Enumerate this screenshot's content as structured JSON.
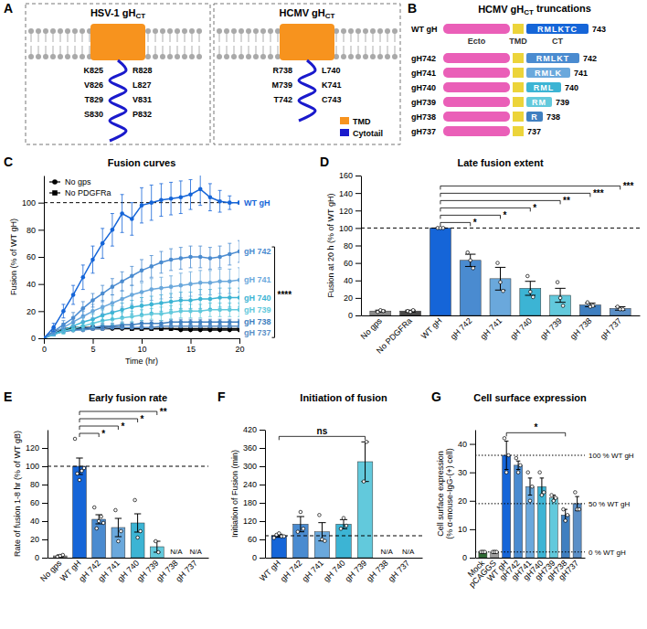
{
  "diagrams": [
    {
      "panel": "A",
      "panels": [
        {
          "title": "HSV-1 gH",
          "title_sub": "CT",
          "residues": [
            "K825",
            "R828",
            "V826",
            "L827",
            "T829",
            "V831",
            "S830",
            "P832"
          ]
        },
        {
          "title": "HCMV gH",
          "title_sub": "CT",
          "residues": [
            "R738",
            "L740",
            "M739",
            "K741",
            "T742",
            "C743"
          ]
        }
      ],
      "key": [
        {
          "label": "TMD",
          "color": "#f7931e"
        },
        {
          "label": "Cytotail",
          "color": "#1a1acc"
        }
      ]
    },
    {
      "panel": "B",
      "title": "HCMV gH",
      "title_sub": "CT",
      "title_suffix": "truncations",
      "domains": [
        {
          "label": "Ecto",
          "color": "#ea5fb8"
        },
        {
          "label": "TMD",
          "color": "#ecd43a"
        },
        {
          "label": "CT",
          "color": "#1565d8"
        }
      ],
      "rows": [
        {
          "name": "WT gH",
          "sequence": "RMLKTC",
          "end": 743,
          "color": "#1565d8"
        },
        {
          "name": "gH742",
          "sequence": "RMLKT",
          "end": 742,
          "color": "#4a8bd0"
        },
        {
          "name": "gH741",
          "sequence": "RMLK",
          "end": 741,
          "color": "#6aa8dc"
        },
        {
          "name": "gH740",
          "sequence": "RML",
          "end": 740,
          "color": "#3cb4d4"
        },
        {
          "name": "gH739",
          "sequence": "RM",
          "end": 739,
          "color": "#62c9dc"
        },
        {
          "name": "gH738",
          "sequence": "R",
          "end": 738,
          "color": "#3f7fc0"
        },
        {
          "name": "gH737",
          "sequence": null,
          "end": 737,
          "color": "#5b8fc7"
        }
      ]
    }
  ],
  "chart_data": [
    {
      "panel": "C",
      "type": "line",
      "title": "Fusion curves",
      "x_label": "Time (hr)",
      "y_label": "Fusion (% of WT gH)",
      "x": [
        0,
        1,
        2,
        3,
        4,
        5,
        6,
        7,
        8,
        9,
        10,
        11,
        12,
        13,
        14,
        15,
        16,
        17,
        18,
        19,
        20
      ],
      "xlim": [
        0,
        20
      ],
      "xticks": [
        0,
        5,
        10,
        15,
        20
      ],
      "ylim": [
        0,
        120
      ],
      "yticks": [
        0,
        20,
        40,
        60,
        80,
        100
      ],
      "reference_line": 100,
      "legend": "upper left",
      "controls": [
        {
          "name": "No gps",
          "color": "#000000",
          "marker": "circle",
          "values": [
            0,
            4,
            6,
            7,
            7,
            7,
            7,
            7,
            7,
            7,
            7,
            7,
            7,
            7,
            6,
            6,
            6,
            6,
            6,
            6,
            6
          ]
        },
        {
          "name": "No PDGFRa",
          "color": "#000000",
          "marker": "square",
          "values": [
            0,
            5,
            7,
            8,
            8,
            8,
            8,
            8,
            8,
            7,
            7,
            7,
            7,
            7,
            7,
            7,
            7,
            7,
            7,
            7,
            7
          ]
        }
      ],
      "series": [
        {
          "name": "WT gH",
          "color": "#1565d8",
          "marker": "circle",
          "values": [
            0,
            8,
            20,
            32,
            45,
            58,
            70,
            80,
            92,
            88,
            98,
            100,
            102,
            103,
            104,
            106,
            110,
            104,
            101,
            100,
            100
          ],
          "errors": [
            0,
            3,
            5,
            7,
            9,
            10,
            11,
            12,
            14,
            12,
            13,
            13,
            12,
            12,
            12,
            11,
            12,
            10,
            8,
            5,
            1
          ]
        },
        {
          "name": "gH 742",
          "color": "#4a8bd0",
          "marker": "circle",
          "values": [
            0,
            5,
            10,
            15,
            22,
            28,
            33,
            38,
            42,
            46,
            50,
            53,
            56,
            58,
            59,
            60,
            60,
            59,
            60,
            62,
            64
          ],
          "errors": [
            0,
            2,
            3,
            4,
            5,
            5,
            6,
            6,
            7,
            7,
            8,
            8,
            8,
            8,
            8,
            8,
            8,
            8,
            8,
            8,
            8
          ]
        },
        {
          "name": "gH 741",
          "color": "#6aa8dc",
          "marker": "circle",
          "values": [
            0,
            4,
            8,
            12,
            16,
            20,
            23,
            26,
            29,
            32,
            34,
            36,
            37,
            38,
            39,
            40,
            41,
            41,
            42,
            42,
            43
          ],
          "errors": [
            0,
            2,
            3,
            3,
            4,
            5,
            5,
            6,
            6,
            7,
            7,
            8,
            8,
            8,
            9,
            9,
            9,
            9,
            9,
            9,
            9
          ]
        },
        {
          "name": "gH 740",
          "color": "#3cb4d4",
          "marker": "circle",
          "values": [
            0,
            3,
            6,
            9,
            12,
            14,
            17,
            19,
            21,
            23,
            24,
            25,
            26,
            27,
            28,
            28,
            29,
            29,
            30,
            30,
            30
          ],
          "errors": [
            0,
            1,
            2,
            3,
            3,
            4,
            4,
            5,
            5,
            5,
            6,
            6,
            6,
            6,
            6,
            6,
            7,
            7,
            7,
            7,
            7
          ]
        },
        {
          "name": "gH 739",
          "color": "#62c9dc",
          "marker": "circle",
          "values": [
            0,
            3,
            5,
            7,
            9,
            11,
            13,
            14,
            15,
            16,
            17,
            18,
            18,
            19,
            20,
            20,
            20,
            21,
            21,
            21,
            21
          ],
          "errors": [
            0,
            1,
            2,
            2,
            3,
            3,
            3,
            4,
            4,
            4,
            4,
            4,
            5,
            5,
            5,
            5,
            5,
            5,
            5,
            5,
            5
          ]
        },
        {
          "name": "gH 738",
          "color": "#3f7fc0",
          "marker": "circle",
          "values": [
            0,
            3,
            5,
            6,
            7,
            8,
            9,
            9,
            10,
            10,
            11,
            11,
            11,
            12,
            12,
            12,
            12,
            12,
            12,
            12,
            12
          ],
          "errors": [
            0,
            1,
            1,
            1,
            1,
            1,
            2,
            2,
            2,
            2,
            2,
            2,
            2,
            2,
            2,
            2,
            2,
            2,
            2,
            2,
            2
          ]
        },
        {
          "name": "gH 737",
          "color": "#5b8fc7",
          "marker": "circle",
          "values": [
            0,
            3,
            5,
            6,
            6,
            7,
            7,
            8,
            8,
            8,
            8,
            8,
            9,
            9,
            9,
            9,
            9,
            9,
            9,
            9,
            9
          ],
          "errors": [
            0,
            1,
            1,
            1,
            1,
            1,
            1,
            1,
            1,
            1,
            1,
            1,
            1,
            1,
            1,
            1,
            1,
            1,
            1,
            1,
            1
          ]
        }
      ],
      "annotations": [
        {
          "text": "****",
          "from": "gH 742",
          "to": "gH 737"
        }
      ]
    },
    {
      "panel": "D",
      "type": "bar",
      "title": "Late fusion extent",
      "y_label": "Fusion at 20 h (% of WT gH)",
      "categories": [
        "No gps",
        "No PDGFRa",
        "WT gH",
        "gH 742",
        "gH 741",
        "gH 740",
        "gH 739",
        "gH 738",
        "gH 737"
      ],
      "values": [
        5,
        5,
        100,
        63,
        42,
        31,
        23,
        12,
        8
      ],
      "errors": [
        1,
        1,
        0,
        7,
        13,
        8,
        8,
        2,
        2
      ],
      "points": [
        [
          4,
          6,
          5
        ],
        [
          5,
          4,
          6
        ],
        [
          100,
          100,
          100
        ],
        [
          72,
          63,
          54
        ],
        [
          60,
          38,
          28
        ],
        [
          45,
          27,
          21
        ],
        [
          38,
          20,
          11
        ],
        [
          15,
          10,
          11
        ],
        [
          10,
          7,
          7
        ]
      ],
      "colors": [
        "#8a8a8a",
        "#4a4a4a",
        "#1565d8",
        "#4a8bd0",
        "#6aa8dc",
        "#3cb4d4",
        "#62c9dc",
        "#3f7fc0",
        "#5b8fc7"
      ],
      "ylim": [
        0,
        160
      ],
      "yticks": [
        0,
        20,
        40,
        60,
        80,
        100,
        120,
        140,
        160
      ],
      "reference_line": 100,
      "comparisons": [
        {
          "groups": [
            "WT gH",
            "gH 742"
          ],
          "label": "*"
        },
        {
          "groups": [
            "WT gH",
            "gH 741"
          ],
          "label": "*"
        },
        {
          "groups": [
            "WT gH",
            "gH 740"
          ],
          "label": "*"
        },
        {
          "groups": [
            "WT gH",
            "gH 739"
          ],
          "label": "**"
        },
        {
          "groups": [
            "WT gH",
            "gH 738"
          ],
          "label": "***"
        },
        {
          "groups": [
            "WT gH",
            "gH 737"
          ],
          "label": "***"
        }
      ]
    },
    {
      "panel": "E",
      "type": "bar",
      "title": "Early fusion rate",
      "y_label": "Rate of fusion 1-8 hr (% of WT gB)",
      "categories": [
        "No gps",
        "WT gH",
        "gH 742",
        "gH 741",
        "gH 740",
        "gH 739",
        "gH 738",
        "gH 737"
      ],
      "values": [
        2,
        100,
        42,
        33,
        38,
        12,
        null,
        null
      ],
      "value_labels": [
        null,
        null,
        null,
        null,
        null,
        null,
        "N/A",
        "N/A"
      ],
      "errors": [
        1,
        9,
        5,
        10,
        10,
        6,
        null,
        null
      ],
      "points": [
        [
          1,
          2,
          3
        ],
        [
          130,
          92,
          85,
          95,
          98
        ],
        [
          55,
          32,
          40,
          45,
          38
        ],
        [
          52,
          18,
          29
        ],
        [
          63,
          22,
          29
        ],
        [
          18,
          6
        ],
        [],
        []
      ],
      "colors": [
        "#8a8a8a",
        "#1565d8",
        "#4a8bd0",
        "#6aa8dc",
        "#3cb4d4",
        "#62c9dc",
        "#3f7fc0",
        "#5b8fc7"
      ],
      "ylim": [
        0,
        140
      ],
      "yticks": [
        0,
        20,
        40,
        60,
        80,
        100,
        120
      ],
      "reference_line": 100,
      "comparisons": [
        {
          "groups": [
            "WT gH",
            "gH 742"
          ],
          "label": "*"
        },
        {
          "groups": [
            "WT gH",
            "gH 741"
          ],
          "label": "*"
        },
        {
          "groups": [
            "WT gH",
            "gH 740"
          ],
          "label": "*"
        },
        {
          "groups": [
            "WT gH",
            "gH 739"
          ],
          "label": "**"
        }
      ]
    },
    {
      "panel": "F",
      "type": "bar",
      "title": "Initiation of fusion",
      "y_label": "Initiation of Fusion (min)",
      "categories": [
        "WT gH",
        "gH 742",
        "gH 741",
        "gH 740",
        "gH 739",
        "gH 738",
        "gH 737"
      ],
      "values": [
        72,
        110,
        85,
        110,
        315,
        null,
        null
      ],
      "value_labels": [
        null,
        null,
        null,
        null,
        null,
        "N/A",
        "N/A"
      ],
      "errors": [
        5,
        25,
        30,
        15,
        65,
        null,
        null
      ],
      "points": [
        [
          65,
          75,
          80,
          70,
          70
        ],
        [
          85,
          150,
          95
        ],
        [
          140,
          60,
          55
        ],
        [
          95,
          130,
          105
        ],
        [
          250,
          380
        ],
        [],
        []
      ],
      "colors": [
        "#1565d8",
        "#4a8bd0",
        "#6aa8dc",
        "#3cb4d4",
        "#62c9dc",
        "#3f7fc0",
        "#5b8fc7"
      ],
      "ylim": [
        0,
        420
      ],
      "yticks": [
        0,
        60,
        120,
        180,
        240,
        300,
        360,
        420
      ],
      "reference_line": 72,
      "comparisons": [
        {
          "groups": [
            "WT gH",
            "gH 739"
          ],
          "label": "ns"
        }
      ]
    },
    {
      "panel": "G",
      "type": "bar",
      "title": "Cell surface expression",
      "y_label": "Cell surface expression (% α-mouse-IgG-(+) cell)",
      "categories": [
        "Mock",
        "pCAGGS",
        "WT gH",
        "gH742",
        "gH741",
        "gH740",
        "gH739",
        "gH738",
        "gH737"
      ],
      "values": [
        2,
        2,
        36,
        32.5,
        25,
        25,
        21,
        15,
        19
      ],
      "errors": [
        0.5,
        0.5,
        5,
        1.5,
        3,
        3,
        1,
        2,
        2.5
      ],
      "points": [
        [
          2,
          2,
          2
        ],
        [
          2,
          2,
          2
        ],
        [
          42,
          30,
          36
        ],
        [
          35,
          30,
          32.5
        ],
        [
          30,
          20,
          25
        ],
        [
          30,
          22,
          23
        ],
        [
          22,
          20,
          21
        ],
        [
          17,
          13,
          15
        ],
        [
          23,
          17,
          17
        ]
      ],
      "colors": [
        "#2e6b34",
        "#9e9e9e",
        "#1565d8",
        "#4a8bd0",
        "#6aa8dc",
        "#3cb4d4",
        "#62c9dc",
        "#3f7fc0",
        "#5b8fc7"
      ],
      "ylim": [
        0,
        45
      ],
      "yticks": [
        0,
        10,
        20,
        30,
        40
      ],
      "reference_lines": [
        {
          "value": 36,
          "label": "100 % WT gH"
        },
        {
          "value": 19,
          "label": "50 % WT gH"
        },
        {
          "value": 2,
          "label": "0 % WT gH"
        }
      ],
      "comparisons": [
        {
          "groups": [
            "WT gH",
            "gH738"
          ],
          "label": "*"
        }
      ]
    }
  ]
}
